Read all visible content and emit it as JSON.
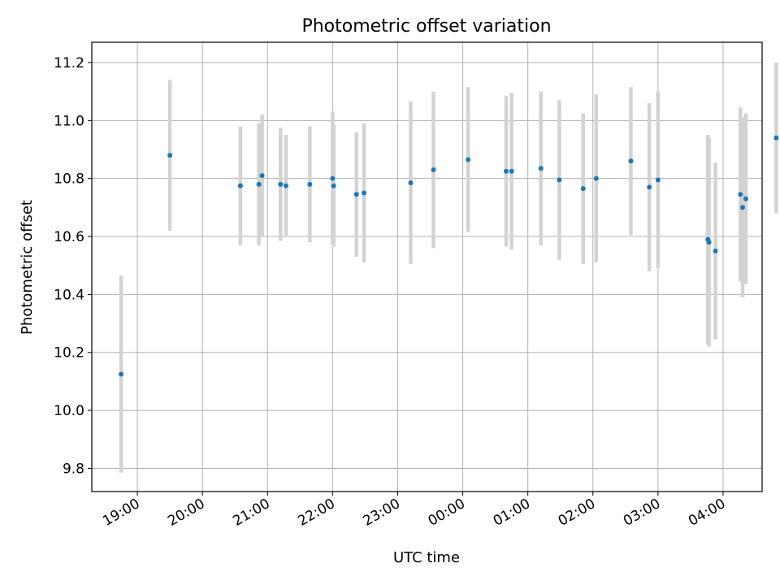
{
  "chart_data": {
    "type": "scatter",
    "title": "Photometric offset variation",
    "xlabel": "UTC time",
    "ylabel": "Photometric offset",
    "x_unit": "UTC time (HH:MM)",
    "xlim": [
      "18:18",
      "04:36"
    ],
    "ylim": [
      9.72,
      11.27
    ],
    "xticks": [
      "19:00",
      "20:00",
      "21:00",
      "22:00",
      "23:00",
      "00:00",
      "01:00",
      "02:00",
      "03:00",
      "04:00"
    ],
    "yticks": [
      9.8,
      10.0,
      10.2,
      10.4,
      10.6,
      10.8,
      11.0,
      11.2
    ],
    "ytick_labels": [
      "9.8",
      "10.0",
      "10.2",
      "10.4",
      "10.6",
      "10.8",
      "11.0",
      "11.2"
    ],
    "grid": true,
    "x_tick_rotation": "diagonal",
    "series": [
      {
        "marker_color": "#1f77b4",
        "errorbar_color": "#d3d3d3",
        "points": [
          {
            "x": "18:45",
            "y": 10.125,
            "yerr": 0.34
          },
          {
            "x": "19:30",
            "y": 10.88,
            "yerr": 0.26
          },
          {
            "x": "20:35",
            "y": 10.775,
            "yerr": 0.205
          },
          {
            "x": "20:52",
            "y": 10.78,
            "yerr": 0.21
          },
          {
            "x": "20:55",
            "y": 10.81,
            "yerr": 0.21
          },
          {
            "x": "21:12",
            "y": 10.78,
            "yerr": 0.195
          },
          {
            "x": "21:17",
            "y": 10.775,
            "yerr": 0.175
          },
          {
            "x": "21:39",
            "y": 10.78,
            "yerr": 0.2
          },
          {
            "x": "22:00",
            "y": 10.8,
            "yerr": 0.23
          },
          {
            "x": "22:01",
            "y": 10.775,
            "yerr": 0.21
          },
          {
            "x": "22:22",
            "y": 10.745,
            "yerr": 0.215
          },
          {
            "x": "22:29",
            "y": 10.75,
            "yerr": 0.24
          },
          {
            "x": "23:12",
            "y": 10.785,
            "yerr": 0.28
          },
          {
            "x": "23:33",
            "y": 10.83,
            "yerr": 0.27
          },
          {
            "x": "00:05",
            "y": 10.865,
            "yerr": 0.25
          },
          {
            "x": "00:40",
            "y": 10.825,
            "yerr": 0.26
          },
          {
            "x": "00:45",
            "y": 10.825,
            "yerr": 0.27
          },
          {
            "x": "01:12",
            "y": 10.835,
            "yerr": 0.265
          },
          {
            "x": "01:29",
            "y": 10.795,
            "yerr": 0.275
          },
          {
            "x": "01:51",
            "y": 10.765,
            "yerr": 0.26
          },
          {
            "x": "02:03",
            "y": 10.8,
            "yerr": 0.29
          },
          {
            "x": "02:35",
            "y": 10.86,
            "yerr": 0.255
          },
          {
            "x": "02:52",
            "y": 10.77,
            "yerr": 0.29
          },
          {
            "x": "03:00",
            "y": 10.795,
            "yerr": 0.305
          },
          {
            "x": "03:46",
            "y": 10.59,
            "yerr": 0.36
          },
          {
            "x": "03:47",
            "y": 10.58,
            "yerr": 0.36
          },
          {
            "x": "03:53",
            "y": 10.55,
            "yerr": 0.305
          },
          {
            "x": "04:16",
            "y": 10.745,
            "yerr": 0.3
          },
          {
            "x": "04:18",
            "y": 10.7,
            "yerr": 0.31
          },
          {
            "x": "04:21",
            "y": 10.73,
            "yerr": 0.295
          },
          {
            "x": "04:49",
            "y": 10.94,
            "yerr": 0.26
          }
        ]
      }
    ]
  }
}
